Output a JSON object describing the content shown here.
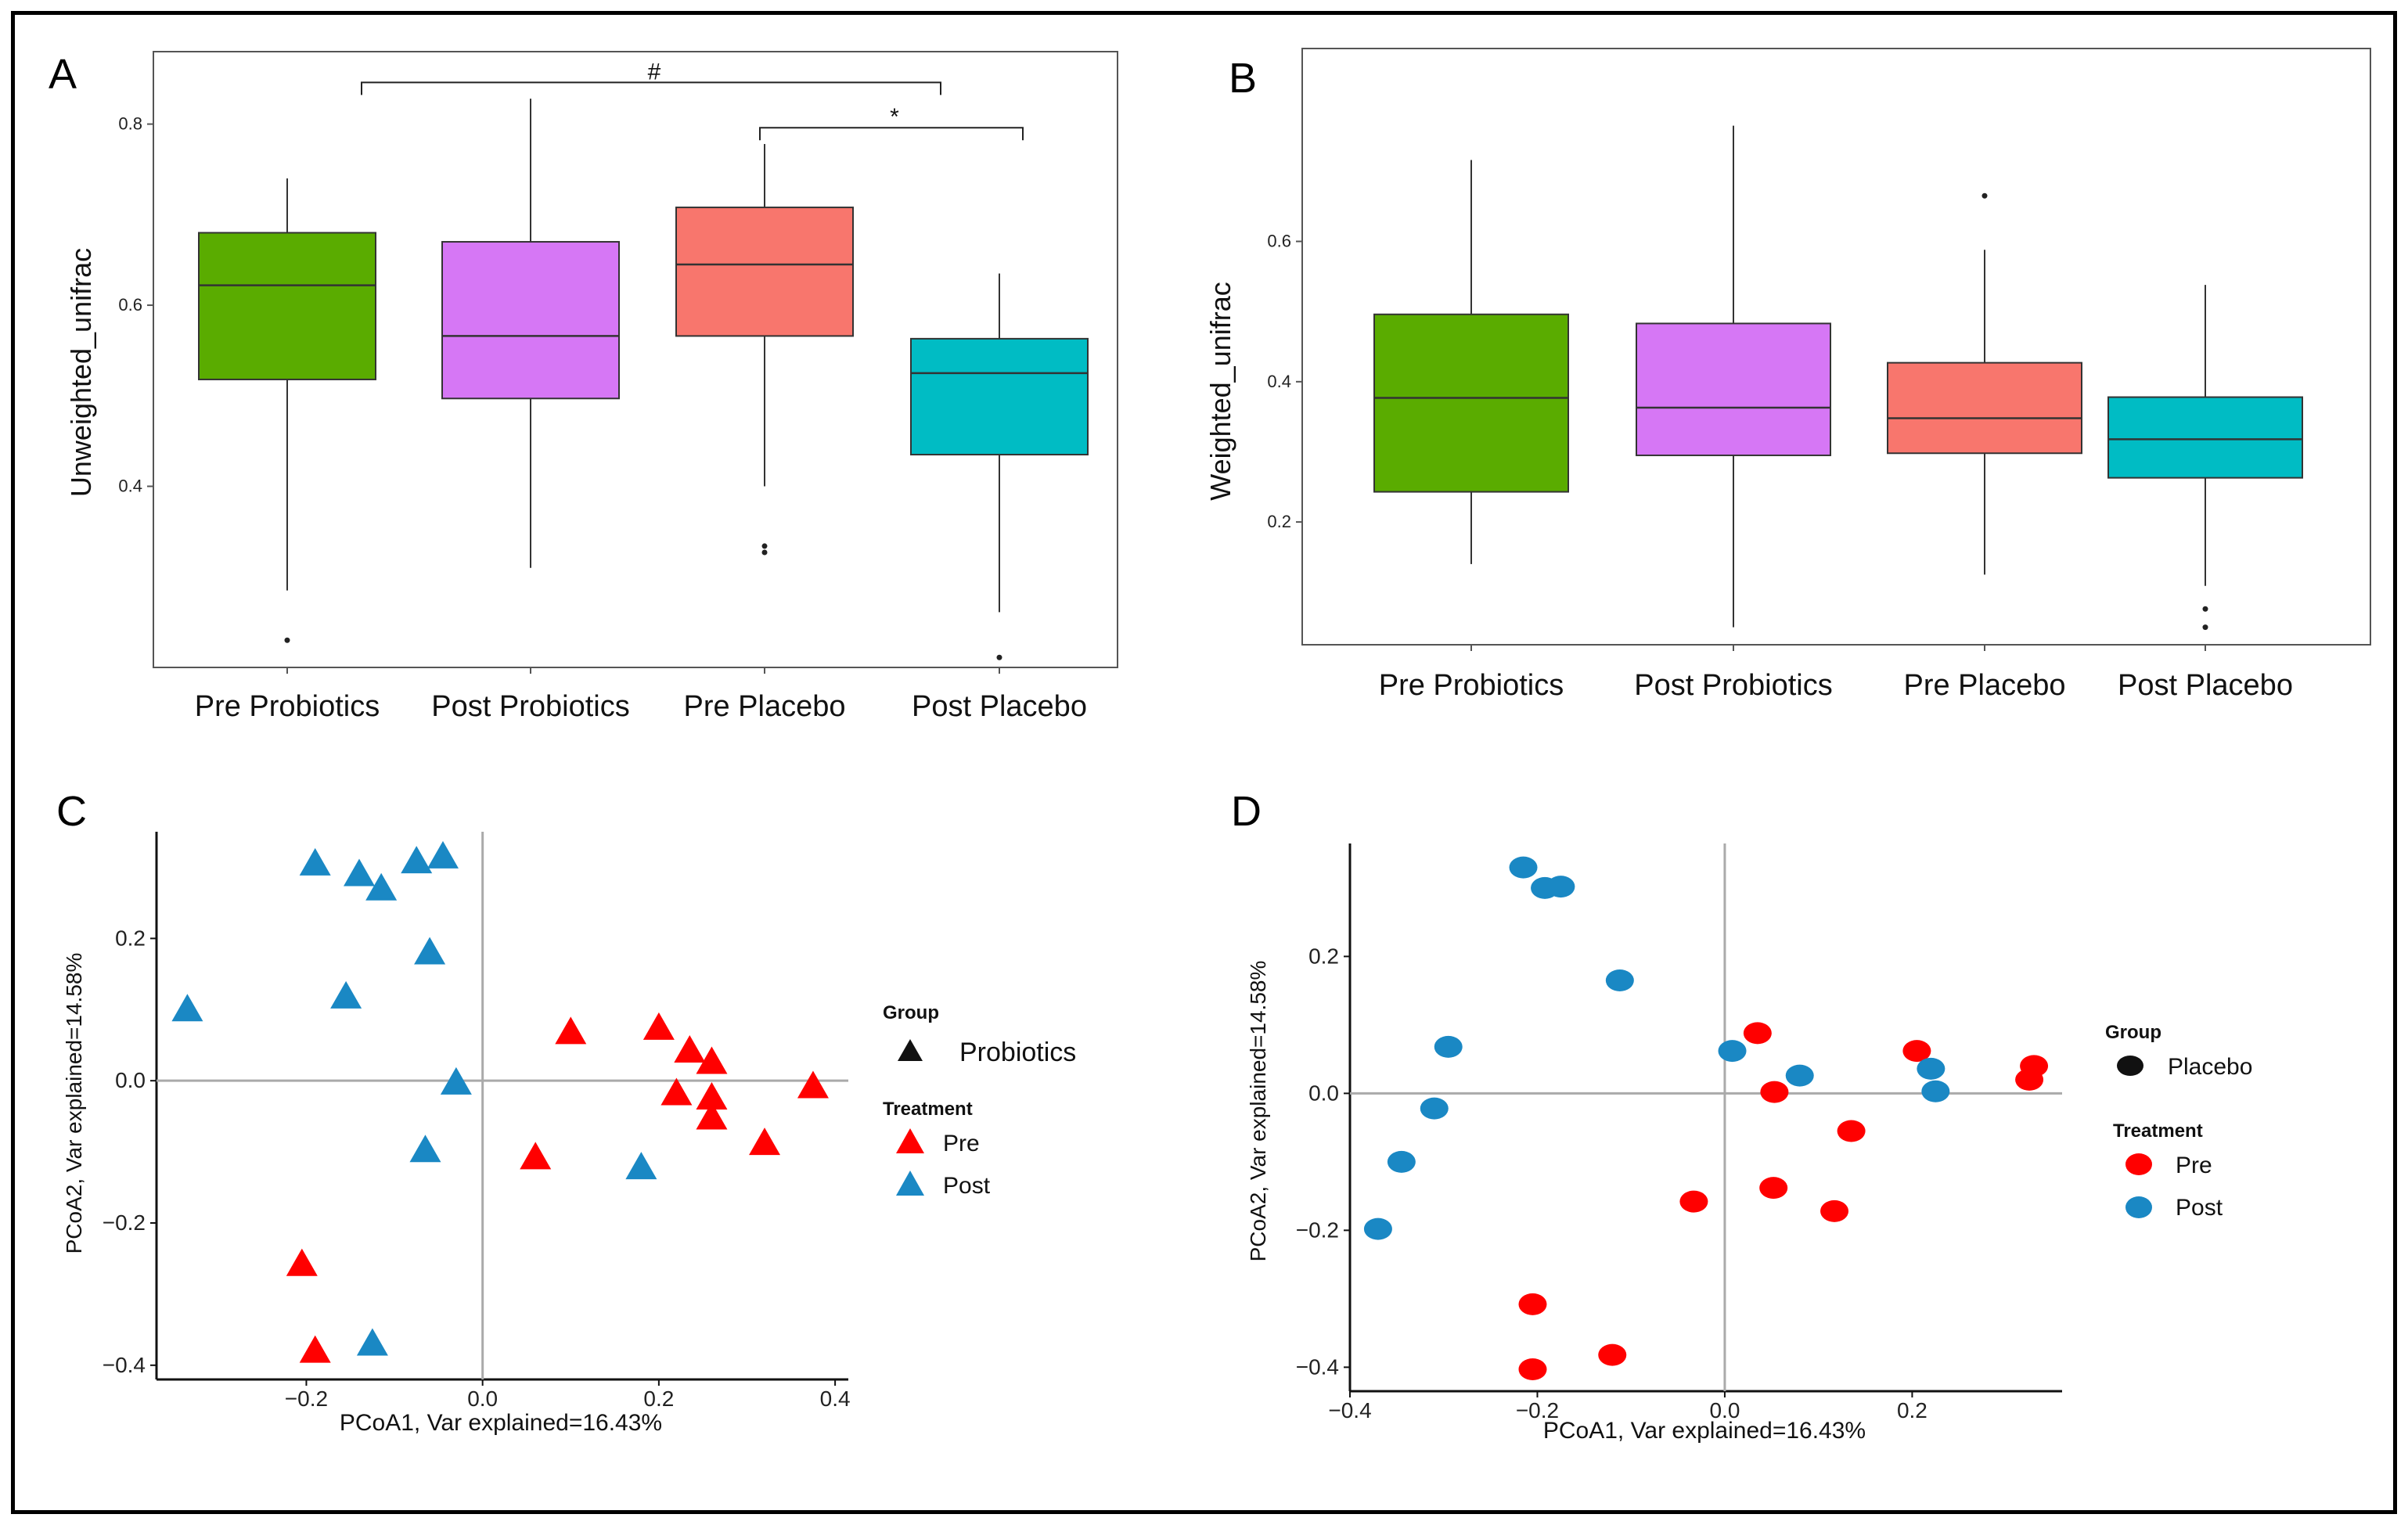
{
  "figure": {
    "border_color": "#000000"
  },
  "colors": {
    "green": "#5aac00",
    "purple": "#d677f5",
    "salmon": "#f8766d",
    "teal": "#00bcc4",
    "red": "#ff0000",
    "blue": "#1a88c4",
    "line": "#333333",
    "axis": "#555555",
    "zero_line": "#aaaaaa",
    "point": "#222222",
    "legend_black": "#111111"
  },
  "chart_data": [
    {
      "panel": "A",
      "type": "boxplot",
      "ylabel": "Unweighted_unifrac",
      "xlabel": "",
      "ylim": [
        0.2,
        0.88
      ],
      "yticks": [
        0.4,
        0.6,
        0.8
      ],
      "ytick_labels": [
        "0.4",
        "0.6",
        "0.8"
      ],
      "categories": [
        "Pre Probiotics",
        "Post Probiotics",
        "Pre Placebo",
        "Post Placebo"
      ],
      "fills": [
        "green",
        "purple",
        "salmon",
        "teal"
      ],
      "boxes": [
        {
          "min": 0.285,
          "q1": 0.518,
          "median": 0.622,
          "q3": 0.68,
          "max": 0.74,
          "outliers": [
            0.23
          ]
        },
        {
          "min": 0.31,
          "q1": 0.497,
          "median": 0.566,
          "q3": 0.67,
          "max": 0.828,
          "outliers": []
        },
        {
          "min": 0.4,
          "q1": 0.566,
          "median": 0.645,
          "q3": 0.708,
          "max": 0.778,
          "outliers": [
            0.334,
            0.327
          ]
        },
        {
          "min": 0.261,
          "q1": 0.435,
          "median": 0.525,
          "q3": 0.563,
          "max": 0.635,
          "outliers": [
            0.211
          ]
        }
      ],
      "brackets": [
        {
          "from": 0,
          "to": 2,
          "label": "#",
          "level": 0.846
        },
        {
          "from": 2,
          "to": 3,
          "label": "*",
          "level": 0.796
        }
      ]
    },
    {
      "panel": "B",
      "type": "boxplot",
      "ylabel": "Weighted_unifrac",
      "xlabel": "",
      "ylim": [
        0.025,
        0.875
      ],
      "yticks": [
        0.2,
        0.4,
        0.6
      ],
      "ytick_labels": [
        "0.2",
        "0.4",
        "0.6"
      ],
      "categories": [
        "Pre Probiotics",
        "Post Probiotics",
        "Pre Placebo",
        "Post Placebo"
      ],
      "fills": [
        "green",
        "purple",
        "salmon",
        "teal"
      ],
      "boxes": [
        {
          "min": 0.14,
          "q1": 0.243,
          "median": 0.377,
          "q3": 0.496,
          "max": 0.716,
          "outliers": []
        },
        {
          "min": 0.05,
          "q1": 0.295,
          "median": 0.363,
          "q3": 0.483,
          "max": 0.765,
          "outliers": []
        },
        {
          "min": 0.125,
          "q1": 0.298,
          "median": 0.348,
          "q3": 0.427,
          "max": 0.588,
          "outliers": [
            0.665
          ]
        },
        {
          "min": 0.109,
          "q1": 0.263,
          "median": 0.318,
          "q3": 0.378,
          "max": 0.538,
          "outliers": [
            0.076,
            0.05
          ]
        }
      ]
    },
    {
      "panel": "C",
      "type": "scatter",
      "marker": "triangle",
      "xlabel": "PCoA1, Var explained=16.43%",
      "ylabel": "PCoA2, Var explained=14.58%",
      "xlim": [
        -0.37,
        0.415
      ],
      "ylim": [
        -0.42,
        0.35
      ],
      "xticks": [
        -0.2,
        0.0,
        0.2,
        0.4
      ],
      "xtick_labels": [
        "−0.2",
        "0.0",
        "0.2",
        "0.4"
      ],
      "yticks": [
        -0.4,
        -0.2,
        0.0,
        0.2
      ],
      "ytick_labels": [
        "−0.4",
        "−0.2",
        "0.0",
        "0.2"
      ],
      "series": [
        {
          "name": "Pre",
          "color": "red",
          "points": [
            [
              0.1,
              0.068
            ],
            [
              0.2,
              0.074
            ],
            [
              0.235,
              0.042
            ],
            [
              0.26,
              0.026
            ],
            [
              0.375,
              -0.008
            ],
            [
              0.22,
              -0.018
            ],
            [
              0.26,
              -0.024
            ],
            [
              0.26,
              -0.052
            ],
            [
              0.32,
              -0.088
            ],
            [
              0.06,
              -0.108
            ],
            [
              -0.205,
              -0.258
            ],
            [
              -0.19,
              -0.38
            ]
          ]
        },
        {
          "name": "Post",
          "color": "blue",
          "points": [
            [
              -0.19,
              0.305
            ],
            [
              -0.14,
              0.29
            ],
            [
              -0.115,
              0.27
            ],
            [
              -0.075,
              0.308
            ],
            [
              -0.045,
              0.315
            ],
            [
              -0.06,
              0.18
            ],
            [
              -0.155,
              0.118
            ],
            [
              -0.335,
              0.1
            ],
            [
              -0.03,
              -0.003
            ],
            [
              -0.065,
              -0.098
            ],
            [
              0.18,
              -0.122
            ],
            [
              -0.125,
              -0.37
            ]
          ]
        }
      ],
      "legend": {
        "group_title": "Group",
        "group_label": "Probiotics",
        "treatment_title": "Treatment",
        "treatment_labels": [
          "Pre",
          "Post"
        ]
      }
    },
    {
      "panel": "D",
      "type": "scatter",
      "marker": "circle",
      "xlabel": "PCoA1, Var explained=16.43%",
      "ylabel": "PCoA2, Var explained=14.58%",
      "xlim": [
        -0.4,
        0.36
      ],
      "ylim": [
        -0.435,
        0.365
      ],
      "xticks": [
        -0.4,
        -0.2,
        0.0,
        0.2
      ],
      "xtick_labels": [
        "−0.4",
        "−0.2",
        "0.0",
        "0.2"
      ],
      "yticks": [
        -0.4,
        -0.2,
        0.0,
        0.2
      ],
      "ytick_labels": [
        "−0.4",
        "−0.2",
        "0.0",
        "0.2"
      ],
      "series": [
        {
          "name": "Pre",
          "color": "red",
          "points": [
            [
              0.035,
              0.088
            ],
            [
              0.205,
              0.062
            ],
            [
              0.33,
              0.04
            ],
            [
              0.325,
              0.02
            ],
            [
              0.053,
              0.002
            ],
            [
              0.135,
              -0.055
            ],
            [
              0.052,
              -0.138
            ],
            [
              -0.033,
              -0.158
            ],
            [
              0.117,
              -0.172
            ],
            [
              -0.205,
              -0.308
            ],
            [
              -0.12,
              -0.382
            ],
            [
              -0.205,
              -0.403
            ]
          ]
        },
        {
          "name": "Post",
          "color": "blue",
          "points": [
            [
              -0.215,
              0.33
            ],
            [
              -0.192,
              0.3
            ],
            [
              -0.175,
              0.302
            ],
            [
              -0.112,
              0.165
            ],
            [
              -0.295,
              0.068
            ],
            [
              0.008,
              0.062
            ],
            [
              0.08,
              0.026
            ],
            [
              0.22,
              0.036
            ],
            [
              0.225,
              0.003
            ],
            [
              -0.31,
              -0.022
            ],
            [
              -0.345,
              -0.1
            ],
            [
              -0.37,
              -0.198
            ]
          ]
        }
      ],
      "legend": {
        "group_title": "Group",
        "group_label": "Placebo",
        "treatment_title": "Treatment",
        "treatment_labels": [
          "Pre",
          "Post"
        ]
      }
    }
  ]
}
